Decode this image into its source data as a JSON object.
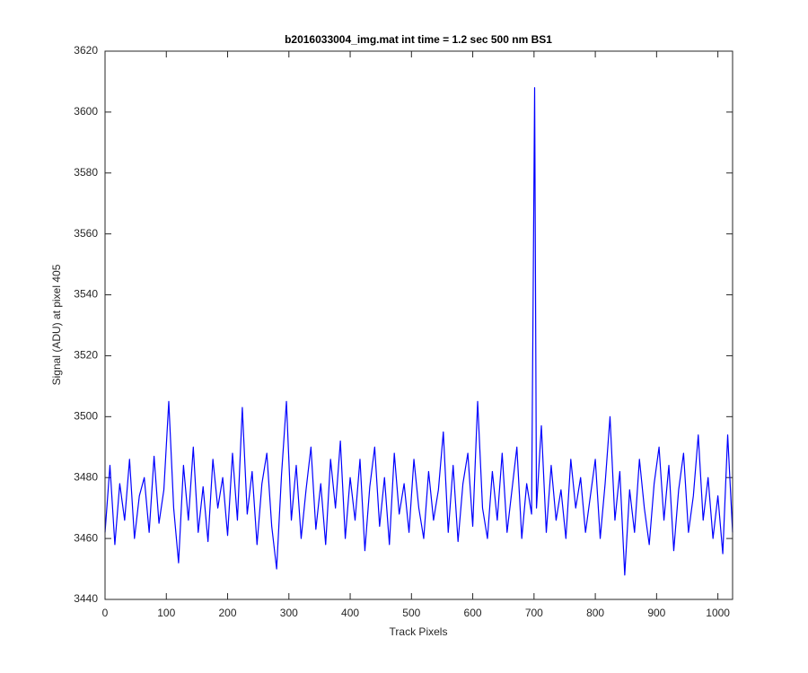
{
  "chart_data": {
    "type": "line",
    "title": "b2016033004_img.mat int time = 1.2 sec  500 nm BS1",
    "xlabel": "Track Pixels",
    "ylabel": "Signal (ADU) at pixel 405",
    "x": [
      0,
      8,
      16,
      24,
      32,
      40,
      48,
      56,
      64,
      72,
      80,
      88,
      96,
      104,
      112,
      120,
      128,
      136,
      144,
      152,
      160,
      168,
      176,
      184,
      192,
      200,
      208,
      216,
      224,
      232,
      240,
      248,
      256,
      264,
      272,
      280,
      288,
      296,
      304,
      312,
      320,
      328,
      336,
      344,
      352,
      360,
      368,
      376,
      384,
      392,
      400,
      408,
      416,
      424,
      432,
      440,
      448,
      456,
      464,
      472,
      480,
      488,
      496,
      504,
      512,
      520,
      528,
      536,
      544,
      552,
      560,
      568,
      576,
      584,
      592,
      600,
      608,
      616,
      624,
      632,
      640,
      648,
      656,
      664,
      672,
      680,
      688,
      696,
      701,
      704,
      712,
      720,
      728,
      736,
      744,
      752,
      760,
      768,
      776,
      784,
      792,
      800,
      808,
      816,
      824,
      832,
      840,
      848,
      856,
      864,
      872,
      880,
      888,
      896,
      904,
      912,
      920,
      928,
      936,
      944,
      952,
      960,
      968,
      976,
      984,
      992,
      1000,
      1008,
      1016,
      1024
    ],
    "series": [
      {
        "name": "signal",
        "color": "#0000ff",
        "values": [
          3462,
          3484,
          3458,
          3478,
          3466,
          3486,
          3460,
          3474,
          3480,
          3462,
          3487,
          3465,
          3476,
          3505,
          3470,
          3452,
          3484,
          3466,
          3490,
          3462,
          3477,
          3459,
          3486,
          3470,
          3480,
          3461,
          3488,
          3466,
          3503,
          3468,
          3482,
          3458,
          3478,
          3488,
          3464,
          3450,
          3481,
          3505,
          3466,
          3484,
          3460,
          3476,
          3490,
          3463,
          3478,
          3458,
          3486,
          3470,
          3492,
          3460,
          3480,
          3466,
          3486,
          3456,
          3477,
          3490,
          3464,
          3480,
          3458,
          3488,
          3468,
          3478,
          3462,
          3486,
          3470,
          3460,
          3482,
          3466,
          3476,
          3495,
          3462,
          3484,
          3459,
          3478,
          3488,
          3464,
          3505,
          3470,
          3460,
          3482,
          3466,
          3488,
          3462,
          3476,
          3490,
          3460,
          3478,
          3468,
          3608,
          3470,
          3497,
          3462,
          3484,
          3466,
          3476,
          3460,
          3486,
          3470,
          3480,
          3462,
          3474,
          3486,
          3460,
          3478,
          3500,
          3466,
          3482,
          3448,
          3476,
          3462,
          3486,
          3470,
          3458,
          3478,
          3490,
          3466,
          3484,
          3456,
          3476,
          3488,
          3462,
          3474,
          3494,
          3466,
          3480,
          3460,
          3474,
          3455,
          3494,
          3462
        ]
      }
    ],
    "xlim": [
      0,
      1024
    ],
    "ylim": [
      3440,
      3620
    ],
    "xticks": [
      0,
      100,
      200,
      300,
      400,
      500,
      600,
      700,
      800,
      900,
      1000
    ],
    "yticks": [
      3440,
      3460,
      3480,
      3500,
      3520,
      3540,
      3560,
      3580,
      3600,
      3620
    ]
  }
}
